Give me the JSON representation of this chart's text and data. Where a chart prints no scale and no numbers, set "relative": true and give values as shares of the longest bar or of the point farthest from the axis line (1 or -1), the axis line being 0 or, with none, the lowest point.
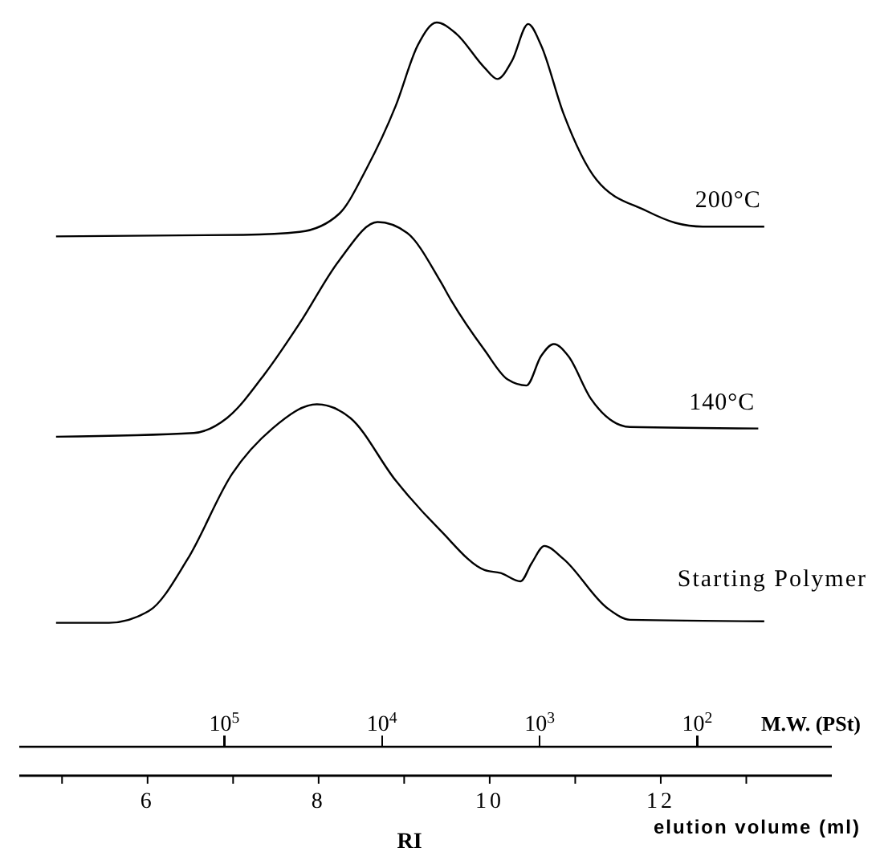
{
  "chart_data": {
    "type": "line",
    "relative": true,
    "xlabel": "elution volume (ml)",
    "x2label": "M.W. (PSt)",
    "annotations": [
      "RI"
    ],
    "legend": false,
    "marker": "none",
    "line_style": "solid",
    "log": "x2",
    "xlim": [
      4.5,
      14
    ],
    "xticks": [
      {
        "value": 5,
        "label": null
      },
      6,
      {
        "value": 7,
        "label": null
      },
      8,
      {
        "value": 9,
        "label": null
      },
      10,
      {
        "value": 11,
        "label": null
      },
      12,
      {
        "value": 13,
        "label": null
      }
    ],
    "x2lim": [
      2000000,
      14
    ],
    "x2ticks": [
      {
        "value": 100000,
        "label": "10$^{5}$"
      },
      {
        "value": 10000,
        "label": "10$^{4}$"
      },
      {
        "value": 1000,
        "label": "10$^{3}$"
      },
      {
        "value": 100,
        "label": "10$^{2}$"
      }
    ],
    "series": [
      {
        "name": "200°C",
        "color": "#000000",
        "x": [
          4.93,
          7.12,
          7.78,
          8.24,
          8.56,
          8.9,
          9.16,
          9.38,
          9.61,
          9.94,
          10.09,
          10.26,
          10.45,
          10.6,
          10.86,
          11.25,
          11.83,
          12.17,
          12.49,
          13.21
        ],
        "values": [
          0.716,
          0.718,
          0.722,
          0.746,
          0.806,
          0.889,
          0.97,
          1.0,
          0.985,
          0.94,
          0.925,
          0.949,
          0.998,
          0.97,
          0.88,
          0.791,
          0.75,
          0.734,
          0.729,
          0.729
        ]
      },
      {
        "name": "140°C",
        "color": "#000000",
        "x": [
          4.93,
          6.54,
          6.93,
          7.38,
          7.78,
          8.24,
          8.69,
          9.03,
          9.42,
          9.55,
          9.94,
          10.21,
          10.43,
          10.6,
          10.75,
          10.92,
          11.18,
          11.64,
          13.14
        ],
        "values": [
          0.45,
          0.455,
          0.475,
          0.535,
          0.601,
          0.684,
          0.735,
          0.721,
          0.657,
          0.631,
          0.565,
          0.526,
          0.518,
          0.557,
          0.573,
          0.557,
          0.501,
          0.463,
          0.461
        ]
      },
      {
        "name": "Starting Polymer",
        "color": "#000000",
        "x": [
          4.93,
          5.55,
          6.02,
          6.47,
          6.99,
          7.46,
          7.98,
          8.37,
          8.9,
          9.42,
          9.94,
          10.13,
          10.36,
          10.49,
          10.64,
          10.86,
          11.38,
          11.64,
          13.21
        ],
        "values": [
          0.203,
          0.203,
          0.219,
          0.288,
          0.401,
          0.461,
          0.493,
          0.475,
          0.392,
          0.326,
          0.273,
          0.269,
          0.258,
          0.282,
          0.305,
          0.288,
          0.222,
          0.207,
          0.205
        ]
      }
    ]
  }
}
